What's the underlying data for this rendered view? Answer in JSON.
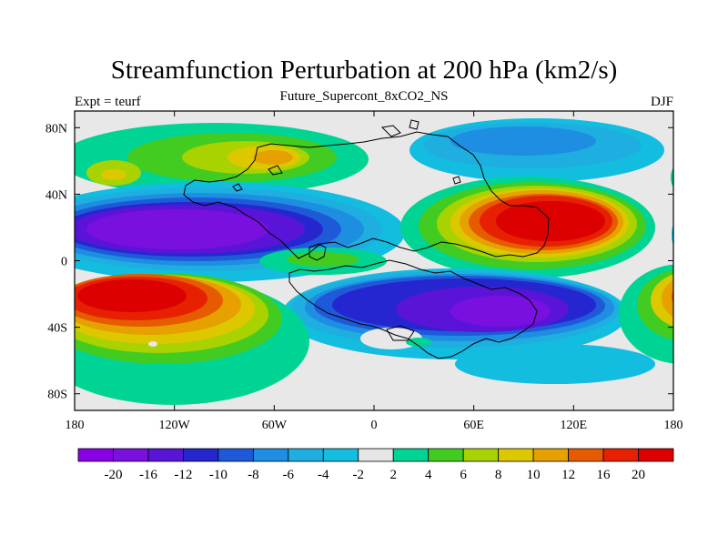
{
  "title": "Streamfunction Perturbation at 200 hPa (km2/s)",
  "subtitle": "Future_Supercont_8xCO2_NS",
  "left_string": "Expt = teurf",
  "right_string": "DJF",
  "map": {
    "lon_range": [
      -180,
      180
    ],
    "lat_range": [
      -90,
      90
    ],
    "x_ticks": [
      {
        "value": -180,
        "label": "180"
      },
      {
        "value": -120,
        "label": "120W"
      },
      {
        "value": -60,
        "label": "60W"
      },
      {
        "value": 0,
        "label": "0"
      },
      {
        "value": 60,
        "label": "60E"
      },
      {
        "value": 120,
        "label": "120E"
      },
      {
        "value": 180,
        "label": "180"
      }
    ],
    "y_ticks": [
      {
        "value": 80,
        "label": "80N"
      },
      {
        "value": 40,
        "label": "40N"
      },
      {
        "value": 0,
        "label": "0"
      },
      {
        "value": -40,
        "label": "40S"
      },
      {
        "value": -80,
        "label": "80S"
      }
    ],
    "background_color": "#e8e8e8"
  },
  "colorbar": {
    "labels": [
      "-20",
      "-16",
      "-12",
      "-10",
      "-8",
      "-6",
      "-4",
      "-2",
      "2",
      "4",
      "6",
      "8",
      "10",
      "12",
      "16",
      "20"
    ],
    "colors": [
      "#8a00e6",
      "#7a10e0",
      "#5a14d8",
      "#2626d0",
      "#1e5ad8",
      "#1e8ee2",
      "#1eaee0",
      "#12bde0",
      "#e6e6e6",
      "#00d494",
      "#42cc22",
      "#a8d200",
      "#ddc800",
      "#e6a000",
      "#e65a00",
      "#e62000",
      "#dc0000"
    ]
  }
}
